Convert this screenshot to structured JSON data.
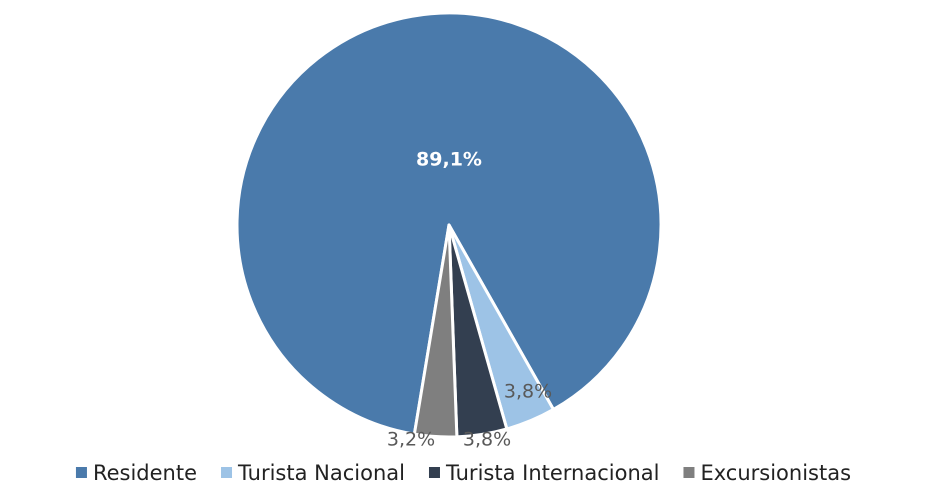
{
  "chart_data": {
    "type": "pie",
    "categories": [
      "Residente",
      "Turista Nacional",
      "Turista Internacional",
      "Excursionistas"
    ],
    "values": [
      89.1,
      3.8,
      3.8,
      3.2
    ],
    "value_labels": [
      "89,1%",
      "3,8%",
      "3,8%",
      "3,2%"
    ],
    "colors": [
      "#4a7aab",
      "#9dc3e6",
      "#333f50",
      "#7f7f7f"
    ],
    "legend": "bottom"
  }
}
